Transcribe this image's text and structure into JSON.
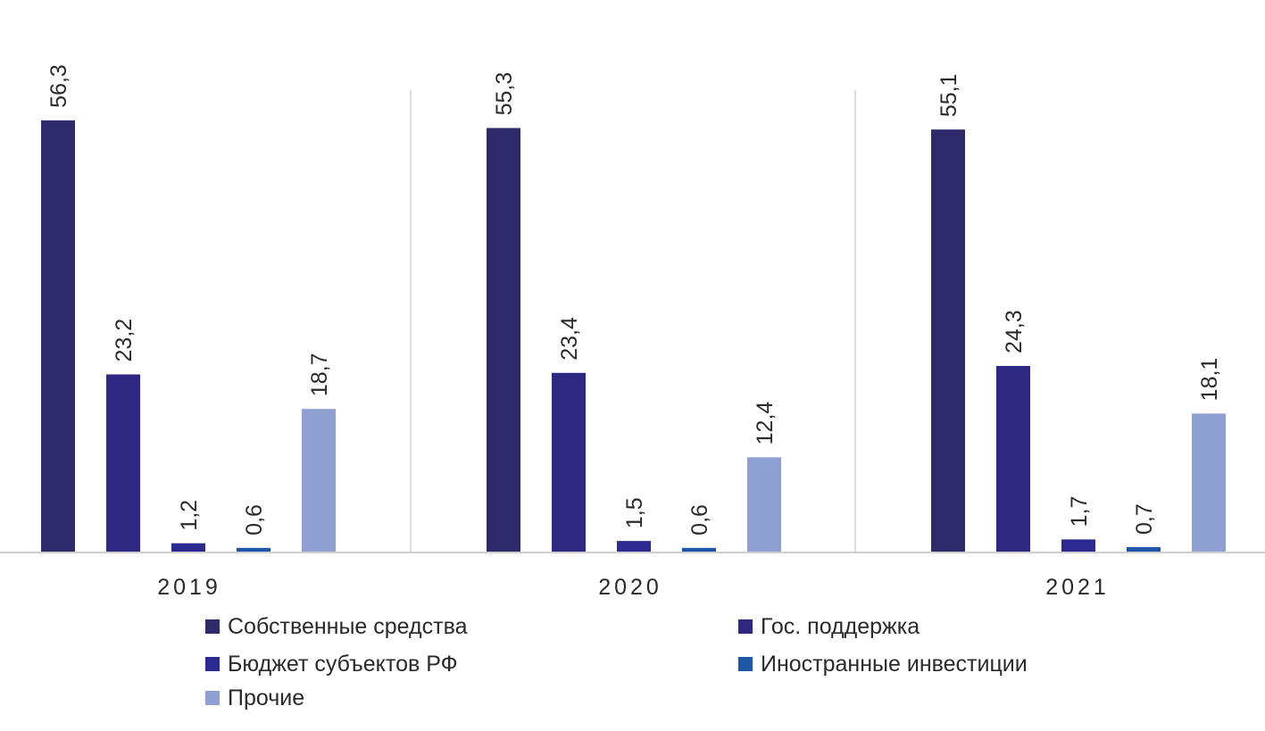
{
  "chart_data": {
    "type": "bar",
    "title": "",
    "xlabel": "",
    "ylabel": "",
    "ylim": [
      0,
      60
    ],
    "grid": false,
    "legend_position": "bottom",
    "categories": [
      "2019",
      "2020",
      "2021"
    ],
    "series": [
      {
        "name": "Собственные средства",
        "color": "#2e2a6b",
        "values": [
          56.3,
          55.3,
          55.1
        ],
        "labels": [
          "56,3",
          "55,3",
          "55,1"
        ]
      },
      {
        "name": "Гос. поддержка",
        "color": "#2f2883",
        "values": [
          23.2,
          23.4,
          24.3
        ],
        "labels": [
          "23,2",
          "23,4",
          "24,3"
        ]
      },
      {
        "name": "Бюджет субъектов РФ",
        "color": "#2b2a90",
        "values": [
          1.2,
          1.5,
          1.7
        ],
        "labels": [
          "1,2",
          "1,5",
          "1,7"
        ]
      },
      {
        "name": "Иностранные инвестиции",
        "color": "#1f56a8",
        "values": [
          0.6,
          0.6,
          0.7
        ],
        "labels": [
          "0,6",
          "0,6",
          "0,7"
        ]
      },
      {
        "name": "Прочие",
        "color": "#8e9fd2",
        "values": [
          18.7,
          12.4,
          18.1
        ],
        "labels": [
          "18,7",
          "12,4",
          "18,1"
        ]
      }
    ]
  }
}
